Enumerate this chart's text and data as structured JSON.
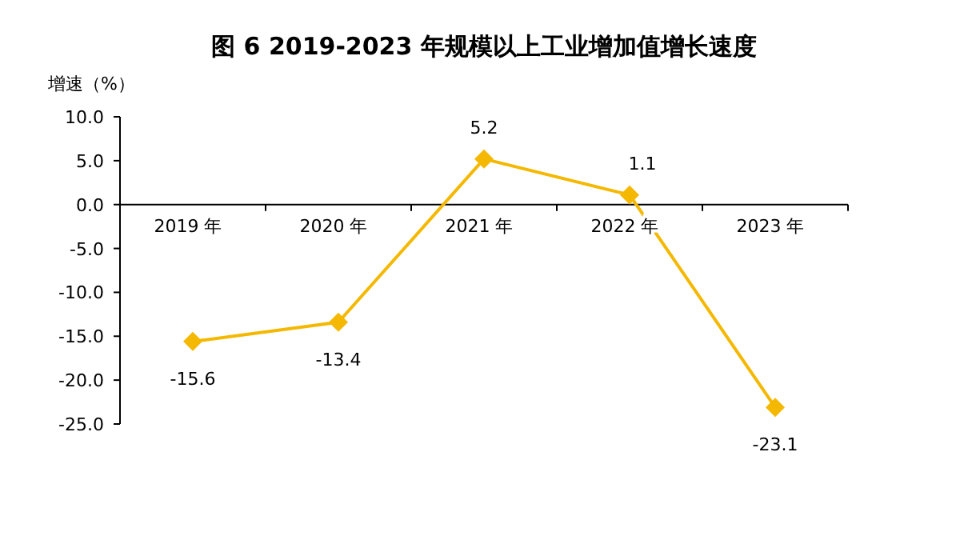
{
  "chart_data": {
    "type": "line",
    "title": "图 6 2019-2023 年规模以上工业增加值增长速度",
    "ylabel": "增速（%）",
    "categories": [
      "2019 年",
      "2020 年",
      "2021 年",
      "2022 年",
      "2023 年"
    ],
    "series": [
      {
        "color": "#f5b800",
        "values": [
          -15.6,
          -13.4,
          5.2,
          1.1,
          -23.1
        ]
      }
    ],
    "ylim": [
      -25,
      10
    ],
    "yticks": [
      {
        "value": 10,
        "label": "10.0"
      },
      {
        "value": 5,
        "label": "5.0"
      },
      {
        "value": 0,
        "label": "0.0"
      },
      {
        "value": -5,
        "label": "-5.0"
      },
      {
        "value": -10,
        "label": "-10.0"
      },
      {
        "value": -15,
        "label": "-15.0"
      },
      {
        "value": -20,
        "label": "-20.0"
      },
      {
        "value": -25,
        "label": "-25.0"
      }
    ],
    "marker": "diamond",
    "data_labels": true,
    "grid": false
  }
}
